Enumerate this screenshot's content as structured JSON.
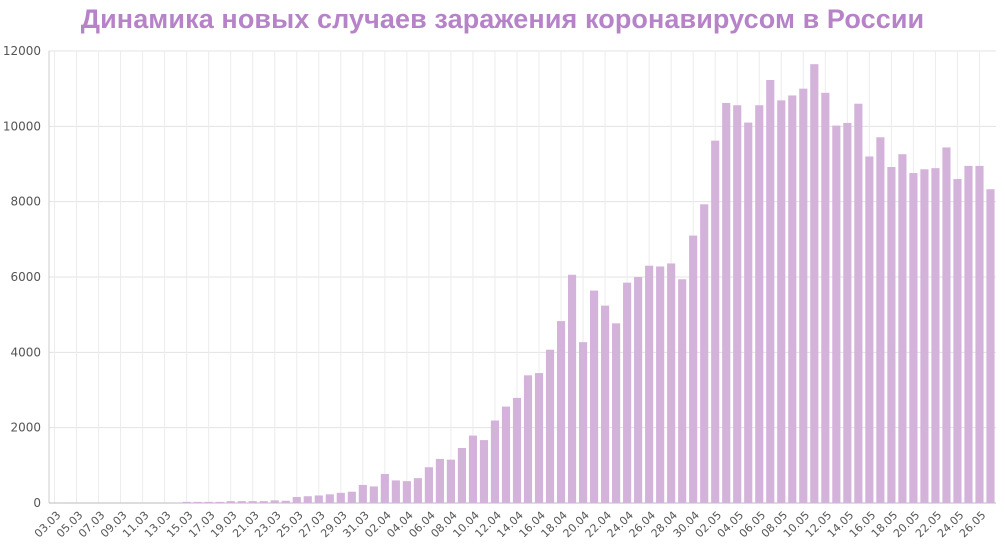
{
  "chart_data": {
    "type": "bar",
    "title": "Динамика новых случаев заражения коронавирусом в России",
    "xlabel": "",
    "ylabel": "",
    "ylim": [
      0,
      12000
    ],
    "yticks": [
      "0",
      "2000",
      "4000",
      "6000",
      "8000",
      "10000",
      "12000"
    ],
    "grid": true,
    "bar_color": "#d4b3db",
    "title_color": "#b783c8",
    "categories": [
      "03.03",
      "04.03",
      "05.03",
      "06.03",
      "07.03",
      "08.03",
      "09.03",
      "10.03",
      "11.03",
      "12.03",
      "13.03",
      "14.03",
      "15.03",
      "16.03",
      "17.03",
      "18.03",
      "19.03",
      "20.03",
      "21.03",
      "22.03",
      "23.03",
      "24.03",
      "25.03",
      "26.03",
      "27.03",
      "28.03",
      "29.03",
      "30.03",
      "31.03",
      "01.04",
      "02.04",
      "03.04",
      "04.04",
      "05.04",
      "06.04",
      "07.04",
      "08.04",
      "09.04",
      "10.04",
      "11.04",
      "12.04",
      "13.04",
      "14.04",
      "15.04",
      "16.04",
      "17.04",
      "18.04",
      "19.04",
      "20.04",
      "21.04",
      "22.04",
      "23.04",
      "24.04",
      "25.04",
      "26.04",
      "27.04",
      "28.04",
      "29.04",
      "30.04",
      "01.05",
      "02.05",
      "03.05",
      "04.05",
      "05.05",
      "06.05",
      "07.05",
      "08.05",
      "09.05",
      "10.05",
      "11.05",
      "12.05",
      "13.05",
      "14.05",
      "15.05",
      "16.05",
      "17.05",
      "18.05",
      "19.05",
      "20.05",
      "21.05",
      "22.05",
      "23.05",
      "24.05",
      "25.05",
      "26.05",
      "27.05"
    ],
    "xtick_labels": [
      "03.03",
      "05.03",
      "07.03",
      "09.03",
      "11.03",
      "13.03",
      "15.03",
      "17.03",
      "19.03",
      "21.03",
      "23.03",
      "25.03",
      "27.03",
      "29.03",
      "31.03",
      "02.04",
      "04.04",
      "06.04",
      "08.04",
      "10.04",
      "12.04",
      "14.04",
      "16.04",
      "18.04",
      "20.04",
      "22.04",
      "24.04",
      "26.04",
      "28.04",
      "30.04",
      "02.05",
      "04.05",
      "06.05",
      "08.05",
      "10.05",
      "12.05",
      "14.05",
      "16.05",
      "18.05",
      "20.05",
      "22.05",
      "24.05",
      "26.05"
    ],
    "values": [
      3,
      0,
      0,
      0,
      0,
      0,
      0,
      0,
      0,
      0,
      0,
      0,
      30,
      30,
      30,
      30,
      50,
      50,
      50,
      50,
      70,
      60,
      160,
      180,
      200,
      230,
      270,
      300,
      480,
      440,
      770,
      600,
      580,
      660,
      950,
      1170,
      1150,
      1460,
      1790,
      1670,
      2190,
      2560,
      2790,
      3390,
      3450,
      4070,
      4830,
      6060,
      4270,
      5640,
      5240,
      4770,
      5850,
      6000,
      6300,
      6280,
      6360,
      5940,
      7100,
      7930,
      9620,
      10620,
      10560,
      10100,
      10560,
      11230,
      10690,
      10820,
      11000,
      11650,
      10890,
      10020,
      10090,
      10600,
      9200,
      9710,
      8920,
      9260,
      8760,
      8860,
      8890,
      9440,
      8600,
      8950,
      8950,
      8330
    ]
  }
}
